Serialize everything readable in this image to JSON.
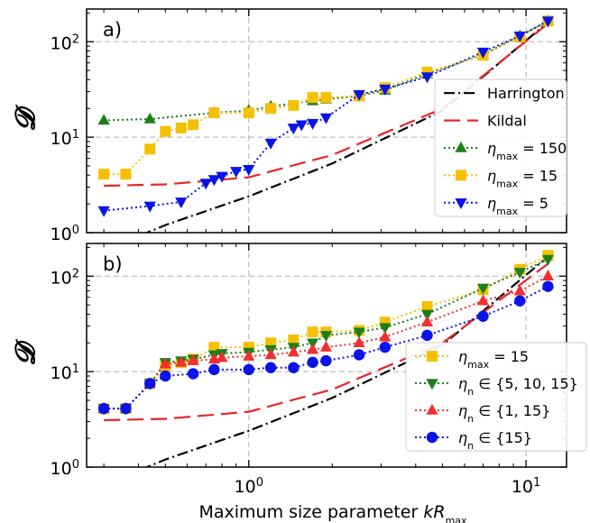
{
  "figure": {
    "xlabel": "Maximum size parameter kR_max",
    "xlabel_main": "Maximum size parameter ",
    "xlabel_var": "kR",
    "xlabel_sub": "max"
  },
  "chart_data": [
    {
      "type": "line",
      "panel_label": "a)",
      "ylabel": "𝓓",
      "xscale": "log",
      "yscale": "log",
      "xlim": [
        0.26,
        14
      ],
      "ylim": [
        1,
        220
      ],
      "x_ticks": [
        {
          "v": 1,
          "base": "10",
          "exp": "0"
        },
        {
          "v": 10,
          "base": "10",
          "exp": "1"
        }
      ],
      "y_ticks": [
        {
          "v": 1,
          "base": "10",
          "exp": "0"
        },
        {
          "v": 10,
          "base": "10",
          "exp": "1"
        },
        {
          "v": 100,
          "base": "10",
          "exp": "2"
        }
      ],
      "grid": true,
      "legend_position": "right",
      "series": [
        {
          "name": "Harrington",
          "style": "dashdot",
          "color": "#000000",
          "x": [
            0.3,
            0.5,
            1,
            2,
            5,
            12
          ],
          "y": [
            0.65,
            1.2,
            2.4,
            5.3,
            19,
            160
          ]
        },
        {
          "name": "Kildal",
          "style": "dashed",
          "color": "#e8262a",
          "x": [
            0.3,
            0.5,
            1,
            2,
            5,
            12
          ],
          "y": [
            3.1,
            3.2,
            3.8,
            6.5,
            20,
            155
          ]
        },
        {
          "name": "η_max = 150",
          "name_main": "η",
          "name_sub": "max",
          "name_tail": " = 150",
          "style": "dotted",
          "marker": "triangle-up",
          "color": "#1b7f1b",
          "x": [
            0.3,
            0.44,
            0.75,
            1,
            1.2,
            1.7,
            1.9,
            2.5,
            3.1,
            4.4,
            7.0,
            9.5,
            12.0
          ],
          "y": [
            15,
            15.5,
            18,
            19,
            21,
            24,
            25,
            27,
            31,
            46,
            73,
            115,
            165
          ]
        },
        {
          "name": "η_max = 15",
          "name_main": "η",
          "name_sub": "max",
          "name_tail": " = 15",
          "style": "dotted",
          "marker": "square",
          "color": "#f5c000",
          "x": [
            0.3,
            0.36,
            0.44,
            0.5,
            0.57,
            0.63,
            0.75,
            1.0,
            1.2,
            1.45,
            1.7,
            1.9,
            2.5,
            3.1,
            4.4,
            7.0,
            9.5,
            12.0
          ],
          "y": [
            4.1,
            4.1,
            7.5,
            11.5,
            12.5,
            13.5,
            18,
            18,
            20,
            21.5,
            26,
            26,
            27,
            33,
            48,
            72,
            112,
            165
          ]
        },
        {
          "name": "η_max = 5",
          "name_main": "η",
          "name_sub": "max",
          "name_tail": " = 5",
          "style": "dotted",
          "marker": "triangle-down",
          "color": "#0a14e6",
          "x": [
            0.3,
            0.44,
            0.57,
            0.7,
            0.75,
            0.8,
            0.9,
            1.0,
            1.2,
            1.45,
            1.55,
            1.7,
            1.9,
            2.5,
            3.1,
            4.4,
            7.0,
            9.5,
            12.0
          ],
          "y": [
            1.7,
            1.9,
            2.1,
            3.3,
            3.6,
            3.9,
            4.4,
            4.6,
            8.7,
            12.5,
            13.5,
            14,
            16,
            28,
            32,
            43,
            78,
            115,
            165
          ]
        }
      ]
    },
    {
      "type": "line",
      "panel_label": "b)",
      "ylabel": "𝓓",
      "xscale": "log",
      "yscale": "log",
      "xlim": [
        0.26,
        14
      ],
      "ylim": [
        1,
        220
      ],
      "x_ticks": [
        {
          "v": 1,
          "base": "10",
          "exp": "0"
        },
        {
          "v": 10,
          "base": "10",
          "exp": "1"
        }
      ],
      "y_ticks": [
        {
          "v": 1,
          "base": "10",
          "exp": "0"
        },
        {
          "v": 10,
          "base": "10",
          "exp": "1"
        },
        {
          "v": 100,
          "base": "10",
          "exp": "2"
        }
      ],
      "grid": true,
      "legend_position": "lower-right",
      "series": [
        {
          "style": "dashdot",
          "color": "#000000",
          "x": [
            0.3,
            0.5,
            1,
            2,
            5,
            12
          ],
          "y": [
            0.65,
            1.2,
            2.4,
            5.3,
            19,
            160
          ]
        },
        {
          "style": "dashed",
          "color": "#e8262a",
          "x": [
            0.3,
            0.5,
            1,
            2,
            5,
            12
          ],
          "y": [
            3.1,
            3.2,
            3.8,
            6.5,
            20,
            135
          ]
        },
        {
          "name": "η_max = 15",
          "name_main": "η",
          "name_sub": "max",
          "name_tail": " = 15",
          "style": "dotted",
          "marker": "square",
          "color": "#f5c000",
          "x": [
            0.3,
            0.36,
            0.44,
            0.5,
            0.57,
            0.63,
            0.75,
            1.0,
            1.2,
            1.45,
            1.7,
            1.9,
            2.5,
            3.1,
            4.4,
            7.0,
            9.5,
            12.0
          ],
          "y": [
            4.1,
            4.1,
            7.5,
            11.5,
            12.5,
            13.5,
            18,
            18,
            20,
            21.5,
            26,
            26,
            27,
            33,
            48,
            72,
            118,
            165
          ]
        },
        {
          "name": "η_n ∈ {5, 10, 15}",
          "name_main": "η",
          "name_sub": "n",
          "name_tail": " ∈ {5, 10, 15}",
          "style": "dotted",
          "marker": "triangle-down",
          "color": "#1b7f1b",
          "x": [
            0.3,
            0.36,
            0.44,
            0.5,
            0.57,
            0.63,
            0.75,
            0.8,
            1.0,
            1.2,
            1.45,
            1.7,
            1.9,
            2.5,
            3.1,
            4.4,
            7.0,
            9.5,
            12.0
          ],
          "y": [
            4.1,
            4.1,
            7.5,
            12.5,
            13,
            13.5,
            15,
            15.5,
            16,
            17,
            18,
            20,
            24,
            26,
            29,
            40,
            75,
            110,
            150
          ]
        },
        {
          "name": "η_n ∈ {1, 15}",
          "name_main": "η",
          "name_sub": "n",
          "name_tail": " ∈ {1, 15}",
          "style": "dotted",
          "marker": "triangle-up",
          "color": "#f03030",
          "x": [
            0.3,
            0.36,
            0.44,
            0.5,
            0.57,
            0.63,
            0.75,
            0.8,
            1.0,
            1.2,
            1.45,
            1.7,
            1.9,
            2.5,
            3.1,
            4.4,
            7.0,
            9.5,
            12.0
          ],
          "y": [
            4.1,
            4.1,
            7.5,
            12,
            12.5,
            13,
            13.5,
            14,
            14.5,
            15,
            16,
            17,
            18,
            20,
            23,
            33,
            55,
            70,
            100
          ]
        },
        {
          "name": "η_n ∈ {15}",
          "name_main": "η",
          "name_sub": "n",
          "name_tail": " ∈ {15}",
          "style": "dotted",
          "marker": "circle",
          "color": "#0a14e6",
          "x": [
            0.3,
            0.36,
            0.44,
            0.5,
            0.63,
            0.75,
            1.0,
            1.2,
            1.45,
            1.7,
            1.9,
            2.5,
            3.1,
            4.4,
            7.0,
            9.5,
            12.0
          ],
          "y": [
            4.1,
            4.1,
            7.5,
            9,
            9.5,
            10.5,
            10.5,
            11,
            11,
            12.5,
            13,
            15,
            18,
            24,
            38,
            55,
            78
          ]
        }
      ]
    }
  ]
}
